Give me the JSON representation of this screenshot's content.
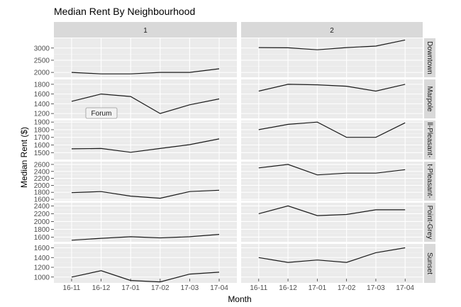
{
  "chart_data": {
    "type": "line",
    "title": "Median Rent By Neighbourhood",
    "xlabel": "Month",
    "ylabel": "Median Rent ($)",
    "x": [
      "16-11",
      "16-12",
      "17-01",
      "17-02",
      "17-03",
      "17-04"
    ],
    "facet_cols": [
      "1",
      "2"
    ],
    "grid": true,
    "colors": {
      "panel_bg": "#ebebeb",
      "strip_bg": "#d9d9d9",
      "grid_major": "#ffffff",
      "grid_minor": "#f5f5f5",
      "line": "#1a1a1a"
    },
    "annotation": {
      "text": "Forum",
      "row": "Marpole",
      "col": "1"
    },
    "rows": [
      {
        "label": "Downtown",
        "ylim": [
          1800,
          3400
        ],
        "yticks": [
          2000,
          2500,
          3000
        ],
        "series": {
          "1": [
            2000,
            1940,
            1940,
            2000,
            2000,
            2150
          ],
          "2": [
            3020,
            3010,
            2930,
            3020,
            3080,
            3330
          ]
        }
      },
      {
        "label": "Marpole",
        "ylim": [
          1100,
          1900
        ],
        "yticks": [
          1200,
          1400,
          1600,
          1800
        ],
        "series": {
          "1": [
            1450,
            1600,
            1550,
            1200,
            1380,
            1500
          ],
          "2": [
            1660,
            1800,
            1790,
            1760,
            1660,
            1800
          ]
        }
      },
      {
        "label": "ll-Pleasant-",
        "ylim": [
          1410,
          1920
        ],
        "yticks": [
          1500,
          1600,
          1700,
          1800,
          1900
        ],
        "series": {
          "1": [
            1550,
            1555,
            1505,
            1555,
            1605,
            1680
          ],
          "2": [
            1800,
            1870,
            1900,
            1700,
            1700,
            1890
          ]
        }
      },
      {
        "label": "t-Pleasant-",
        "ylim": [
          1560,
          2680
        ],
        "yticks": [
          1600,
          1800,
          2000,
          2200,
          2400,
          2600
        ],
        "series": {
          "1": [
            1790,
            1820,
            1690,
            1630,
            1820,
            1860
          ],
          "2": [
            2500,
            2600,
            2300,
            2350,
            2350,
            2450
          ]
        }
      },
      {
        "label": "Point-Grey",
        "ylim": [
          1480,
          2480
        ],
        "yticks": [
          1600,
          1800,
          2000,
          2200,
          2400
        ],
        "series": {
          "1": [
            1520,
            1570,
            1610,
            1580,
            1610,
            1670
          ],
          "2": [
            2200,
            2400,
            2150,
            2180,
            2300,
            2300
          ]
        }
      },
      {
        "label": "Sunset",
        "ylim": [
          880,
          1680
        ],
        "yticks": [
          1000,
          1200,
          1400,
          1600
        ],
        "series": {
          "1": [
            1000,
            1130,
            930,
            900,
            1060,
            1100
          ],
          "2": [
            1400,
            1300,
            1350,
            1300,
            1500,
            1600
          ]
        }
      }
    ]
  }
}
